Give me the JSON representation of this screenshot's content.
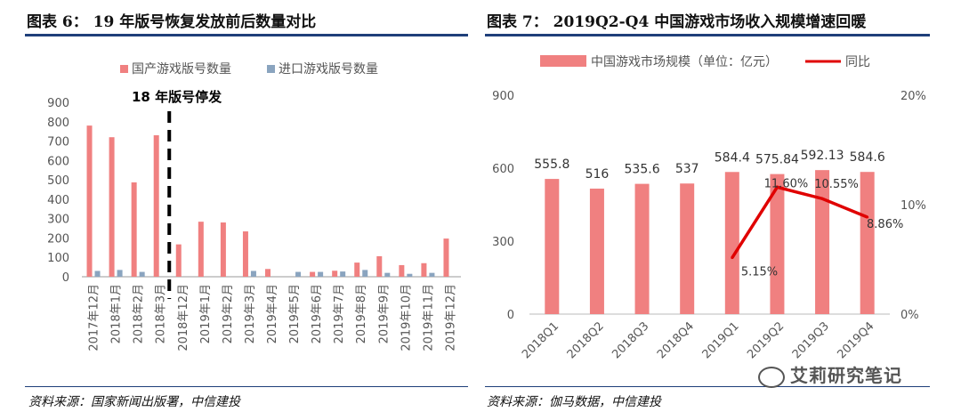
{
  "left": {
    "title": "图表 6：   19 年版号恢复发放前后数量对比",
    "source": "资料来源：国家新闻出版署，中信建投",
    "chart_data": {
      "type": "bar",
      "categories": [
        "2017年12月",
        "2018年1月",
        "2018年2月",
        "2018年3月",
        "2018年12月",
        "2019年1月",
        "2019年2月",
        "2019年3月",
        "2019年4月",
        "2019年5月",
        "2019年6月",
        "2019年7月",
        "2019年8月",
        "2019年9月",
        "2019年10月",
        "2019年11月",
        "2019年12月"
      ],
      "series": [
        {
          "name": "国产游戏版号数量",
          "color": "#f08080",
          "values": [
            780,
            720,
            487,
            730,
            167,
            284,
            280,
            234,
            40,
            0,
            25,
            31,
            73,
            106,
            60,
            70,
            197
          ]
        },
        {
          "name": "进口游戏版号数量",
          "color": "#8aa4bf",
          "values": [
            30,
            35,
            25,
            0,
            0,
            0,
            0,
            30,
            0,
            25,
            25,
            27,
            35,
            20,
            15,
            20,
            0
          ]
        }
      ],
      "ylim": [
        0,
        900
      ],
      "yticks": [
        0,
        100,
        200,
        300,
        400,
        500,
        600,
        700,
        800,
        900
      ],
      "annotation": "18 年版号停发"
    }
  },
  "right": {
    "title": "图表 7：   2019Q2-Q4 中国游戏市场收入规模增速回暖",
    "source": "资料来源：伽马数据，中信建投",
    "watermark": "艾莉研究笔记",
    "chart_data": {
      "type": "bar",
      "categories": [
        "2018Q1",
        "2018Q2",
        "2018Q3",
        "2018Q4",
        "2019Q1",
        "2019Q2",
        "2019Q3",
        "2019Q4"
      ],
      "bar_series": {
        "name": "中国游戏市场规模（单位：亿元）",
        "color": "#f08080",
        "values": [
          555.8,
          516,
          535.6,
          537,
          584.4,
          575.84,
          592.13,
          584.6
        ],
        "labels": [
          "555.8",
          "516",
          "535.6",
          "537",
          "584.4",
          "575.84",
          "592.13",
          "584.6"
        ]
      },
      "line_series": {
        "name": "同比",
        "color": "#e00000",
        "indices": [
          4,
          5,
          6,
          7
        ],
        "values": [
          5.15,
          11.6,
          10.55,
          8.86
        ],
        "labels": [
          "5.15%",
          "11.60%",
          "10.55%",
          "8.86%"
        ]
      },
      "ylim_left": [
        0,
        900
      ],
      "yticks_left": [
        0,
        300,
        600,
        900
      ],
      "ylim_right": [
        0,
        20
      ],
      "yticks_right": [
        "0%",
        "10%",
        "20%"
      ]
    }
  }
}
